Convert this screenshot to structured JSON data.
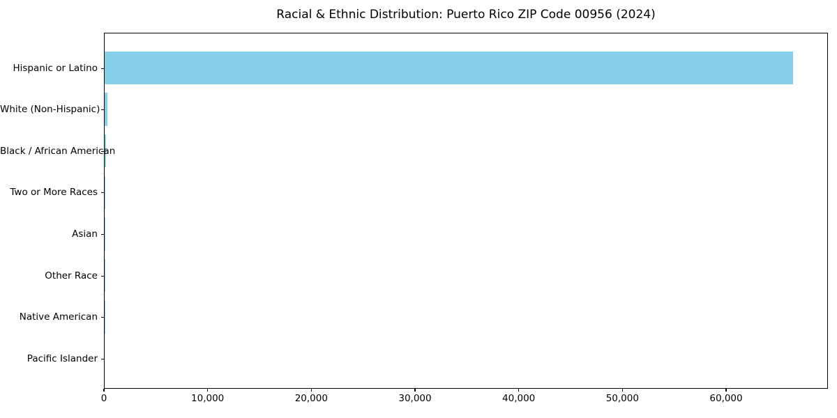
{
  "title": "Racial & Ethnic Distribution: Puerto Rico ZIP Code 00956 (2024)",
  "chart_data": {
    "type": "bar",
    "orientation": "horizontal",
    "title": "Racial & Ethnic Distribution: Puerto Rico ZIP Code 00956 (2024)",
    "xlabel": "",
    "ylabel": "",
    "categories": [
      "Hispanic or Latino",
      "White (Non-Hispanic)",
      "Black / African American",
      "Two or More Races",
      "Asian",
      "Other Race",
      "Native American",
      "Pacific Islander"
    ],
    "values": [
      66400,
      250,
      110,
      40,
      25,
      15,
      8,
      3
    ],
    "xlim": [
      0,
      69800
    ],
    "x_ticks": [
      0,
      10000,
      20000,
      30000,
      40000,
      50000,
      60000
    ],
    "x_tick_labels": [
      "0",
      "10,000",
      "20,000",
      "30,000",
      "40,000",
      "50,000",
      "60,000"
    ],
    "grid": false,
    "legend": null,
    "bar_color": "#87CEEB",
    "axis_color": "#000000",
    "background_color": "#FFFFFF"
  }
}
